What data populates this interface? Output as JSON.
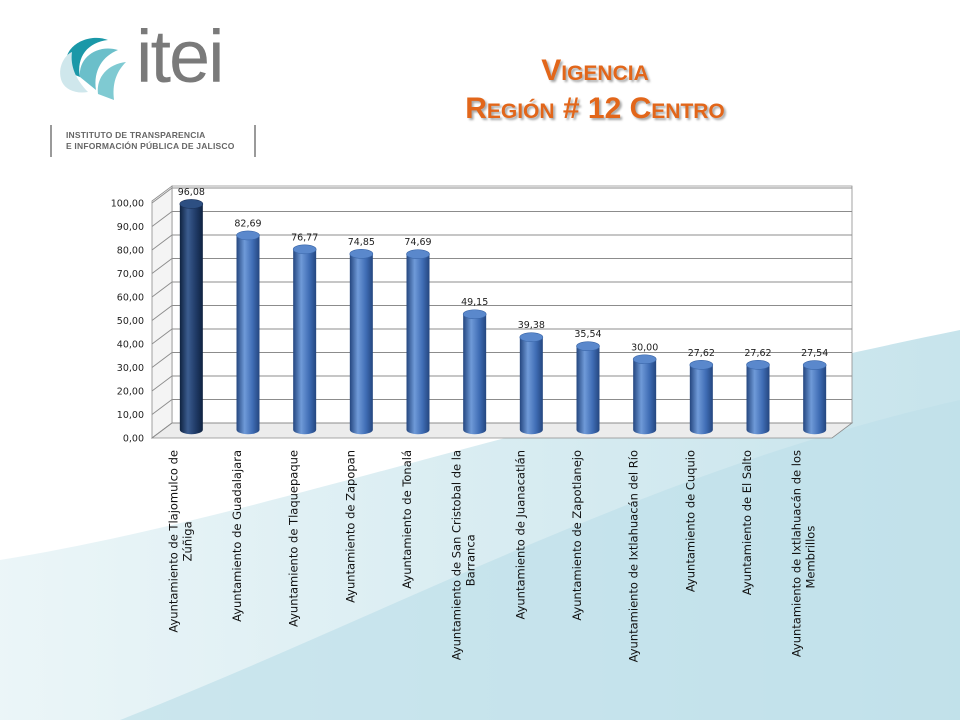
{
  "logo": {
    "wordmark": "itei",
    "subtitle_line1": "INSTITUTO DE TRANSPARENCIA",
    "subtitle_line2": "E INFORMACIÓN PÚBLICA DE JALISCO"
  },
  "slide": {
    "title_line1": "Vigencia",
    "title_line2": "Región # 12 Centro"
  },
  "colors": {
    "title": "#e2661a",
    "bar": "#3f6db5",
    "bar_highlight": "#1f3a66",
    "background_wave": "#cfe7ef"
  },
  "chart_data": {
    "type": "bar",
    "categories": [
      "Ayuntamiento de Tlajomulco de Zúñiga",
      "Ayuntamiento de Guadalajara",
      "Ayuntamiento de Tlaquepaque",
      "Ayuntamiento de Zapopan",
      "Ayuntamiento de Tonalá",
      "Ayuntamiento de San Cristobal de la Barranca",
      "Ayuntamiento de Juanacatlán",
      "Ayuntamiento de Zapotlanejo",
      "Ayuntamiento de Ixtlahuacán del Río",
      "Ayuntamiento de Cuquio",
      "Ayuntamiento de El Salto",
      "Ayuntamiento de Ixtlahuacán de los Membrillos"
    ],
    "category_lines": [
      [
        "Ayuntamiento de Tlajomulco de",
        "Zúñiga"
      ],
      [
        "Ayuntamiento de Guadalajara"
      ],
      [
        "Ayuntamiento de Tlaquepaque"
      ],
      [
        "Ayuntamiento de Zapopan"
      ],
      [
        "Ayuntamiento de Tonalá"
      ],
      [
        "Ayuntamiento de San Cristobal de la",
        "Barranca"
      ],
      [
        "Ayuntamiento de Juanacatlán"
      ],
      [
        "Ayuntamiento de Zapotlanejo"
      ],
      [
        "Ayuntamiento de Ixtlahuacán del Río"
      ],
      [
        "Ayuntamiento de Cuquio"
      ],
      [
        "Ayuntamiento de El Salto"
      ],
      [
        "Ayuntamiento de Ixtlahuacán de los",
        "Membrillos"
      ]
    ],
    "values": [
      96.08,
      82.69,
      76.77,
      74.85,
      74.69,
      49.15,
      39.38,
      35.54,
      30.0,
      27.62,
      27.62,
      27.54
    ],
    "value_labels": [
      "96,08",
      "82,69",
      "76,77",
      "74,85",
      "74,69",
      "49,15",
      "39,38",
      "35,54",
      "30,00",
      "27,62",
      "27,62",
      "27,54"
    ],
    "highlight_index": 0,
    "yticks": [
      "0,00",
      "10,00",
      "20,00",
      "30,00",
      "40,00",
      "50,00",
      "60,00",
      "70,00",
      "80,00",
      "90,00",
      "100,00"
    ],
    "ylim": [
      0,
      100
    ],
    "grid": true,
    "legend": "none"
  }
}
